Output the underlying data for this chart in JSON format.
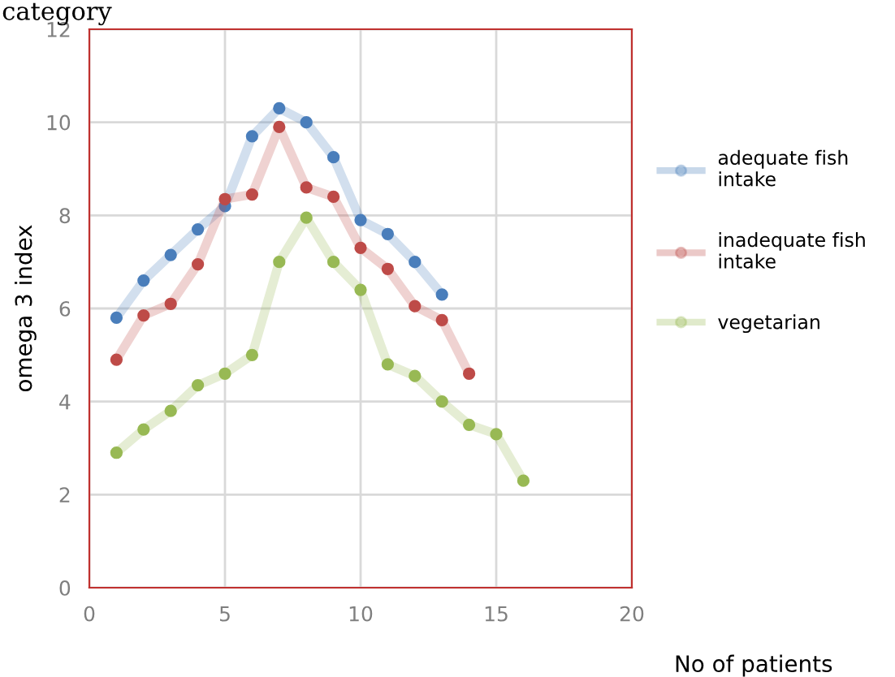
{
  "chart_data": {
    "type": "line",
    "title": "category",
    "xlabel": "No of patients",
    "ylabel": "omega 3 index",
    "xlim": [
      0,
      20
    ],
    "xticks": [
      0,
      5,
      10,
      15,
      20
    ],
    "ylim": [
      0,
      12
    ],
    "yticks": [
      0,
      2,
      4,
      6,
      8,
      10,
      12
    ],
    "grid": true,
    "legend": "right",
    "marker": "circle",
    "line_style": "solid",
    "series": [
      {
        "name": "adequate fish\nintake",
        "color": "#4a7ebb",
        "x": [
          1,
          2,
          3,
          4,
          5,
          6,
          7,
          8,
          9,
          10,
          11,
          12,
          13
        ],
        "values": [
          5.8,
          6.6,
          7.15,
          7.7,
          8.2,
          9.7,
          10.3,
          10.0,
          9.25,
          7.9,
          7.6,
          7.0,
          6.3
        ]
      },
      {
        "name": "inadequate fish\nintake",
        "color": "#be4b48",
        "x": [
          1,
          2,
          3,
          4,
          5,
          6,
          7,
          8,
          9,
          10,
          11,
          12,
          13,
          14
        ],
        "values": [
          4.9,
          5.85,
          6.1,
          6.95,
          8.35,
          8.45,
          9.9,
          8.6,
          8.4,
          7.3,
          6.85,
          6.05,
          5.75,
          4.6
        ]
      },
      {
        "name": "vegetarian",
        "color": "#98b954",
        "x": [
          1,
          2,
          3,
          4,
          5,
          6,
          7,
          8,
          9,
          10,
          11,
          12,
          13,
          14,
          15,
          16
        ],
        "values": [
          2.9,
          3.4,
          3.8,
          4.35,
          4.6,
          5.0,
          7.0,
          7.95,
          7.0,
          6.4,
          4.8,
          4.55,
          4.0,
          3.5,
          3.3,
          2.3
        ]
      }
    ]
  }
}
